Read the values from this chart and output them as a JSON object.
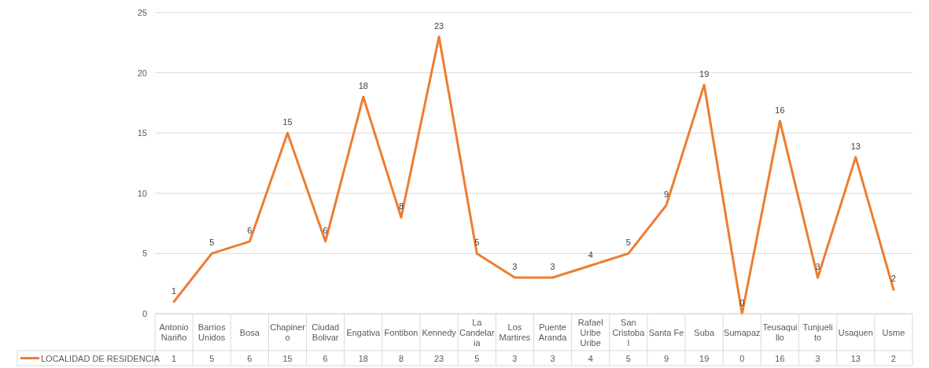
{
  "chart_data": {
    "type": "line",
    "categories": [
      "Antonio Nariño",
      "Barrios Unidos",
      "Bosa",
      "Chapinero",
      "Ciudad Bolivar",
      "Engativa",
      "Fontibon",
      "Kennedy",
      "La Candelaria",
      "Los Martires",
      "Puente Aranda",
      "Rafael Uribe Uribe",
      "San Cristobal",
      "Santa Fe",
      "Suba",
      "Sumapaz",
      "Teusaquillo",
      "Tunjuelito",
      "Usaquen",
      "Usme"
    ],
    "series": [
      {
        "name": "LOCALIDAD DE RESIDENCIA",
        "color": "#ed7d31",
        "values": [
          1,
          5,
          6,
          15,
          6,
          18,
          8,
          23,
          5,
          3,
          3,
          4,
          5,
          9,
          19,
          0,
          16,
          3,
          13,
          2
        ],
        "value_labels": [
          "1",
          "5",
          "6",
          "15",
          "6",
          "18",
          "8",
          "23",
          "5",
          "3",
          "3",
          "4",
          "5",
          "9",
          "19",
          "0",
          "16",
          "3",
          "13",
          "2"
        ]
      }
    ],
    "ylim": [
      0,
      25
    ],
    "yticks": [
      0,
      5,
      10,
      15,
      20,
      25
    ],
    "grid": "y",
    "data_labels": true,
    "legend": "bottom",
    "marker": "none",
    "line_style": "solid"
  }
}
